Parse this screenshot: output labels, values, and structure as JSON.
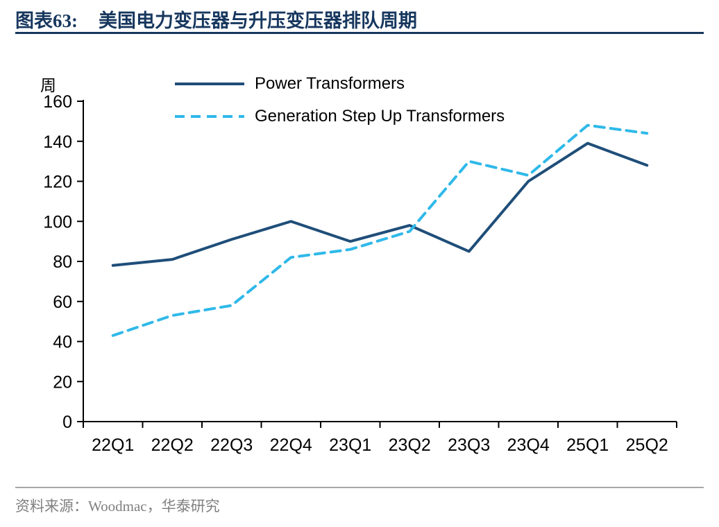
{
  "header": {
    "chart_label": "图表63:",
    "chart_title": "美国电力变压器与升压变压器排队周期"
  },
  "footer": {
    "source": "资料来源：Woodmac，华泰研究"
  },
  "colors": {
    "title": "#17375E",
    "title_rule": "#17375E",
    "axis": "#000000",
    "power_transformers_line": "#1F4E79",
    "step_up_transformers_line": "#2FB9E9",
    "footer_text": "#808080",
    "footer_rule": "#A6A6A6"
  },
  "chart_data": {
    "type": "line",
    "title": "美国电力变压器与升压变压器排队周期",
    "ylabel": "周",
    "xlabel": "",
    "ylim": [
      0,
      160
    ],
    "yticks": [
      0,
      20,
      40,
      60,
      80,
      100,
      120,
      140,
      160
    ],
    "grid": false,
    "legend_position": "top-left-inside",
    "categories": [
      "22Q1",
      "22Q2",
      "22Q3",
      "22Q4",
      "23Q1",
      "23Q2",
      "23Q3",
      "23Q4",
      "25Q1",
      "25Q2"
    ],
    "series": [
      {
        "name": "Power Transformers",
        "style": "solid",
        "color": "#1F4E79",
        "values": [
          78,
          81,
          91,
          100,
          90,
          98,
          85,
          120,
          139,
          128
        ]
      },
      {
        "name": "Generation Step Up Transformers",
        "style": "dashed",
        "color": "#2FB9E9",
        "values": [
          43,
          53,
          58,
          82,
          86,
          95,
          130,
          123,
          148,
          144
        ]
      }
    ]
  }
}
